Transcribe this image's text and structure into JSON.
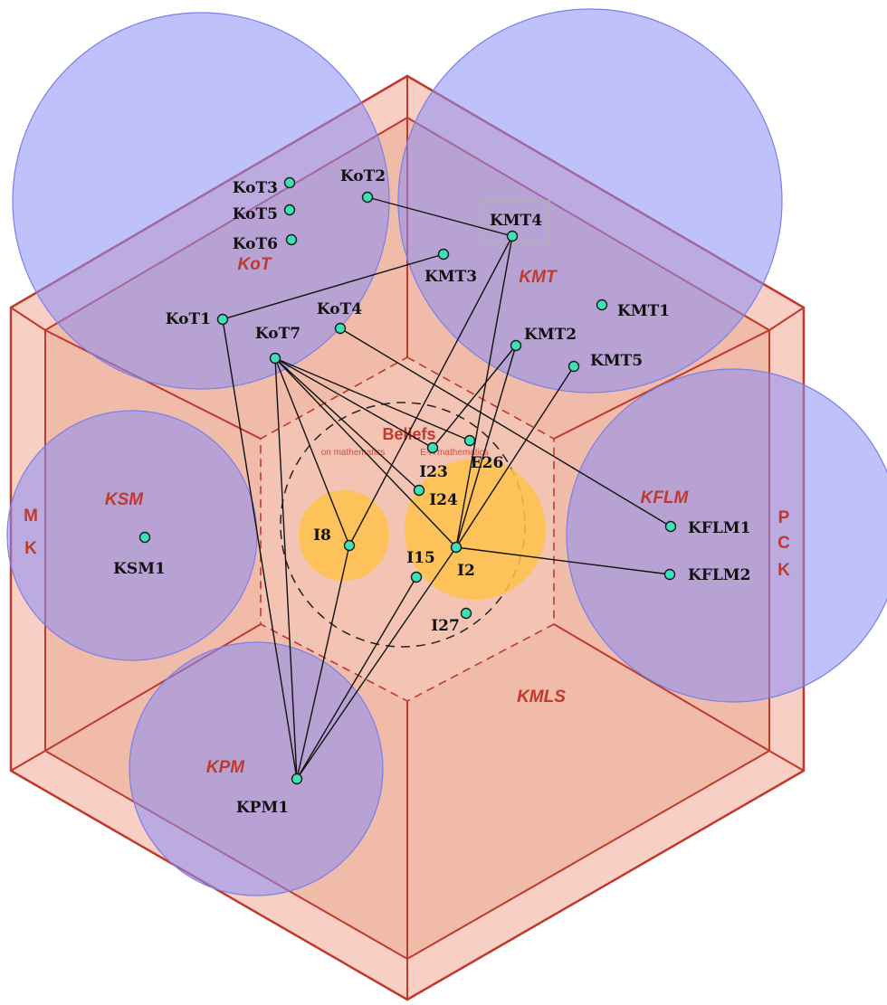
{
  "side_labels": {
    "mk": {
      "letters": [
        "M",
        "K"
      ],
      "color": "#c0392b"
    },
    "pck": {
      "letters": [
        "P",
        "C",
        "K"
      ],
      "color": "#c0392b"
    }
  },
  "regions": {
    "kot": "KoT",
    "kmt": "KMT",
    "ksm": "KSM",
    "kflm": "KFLM",
    "kpm": "KPM",
    "kmls": "KMLS"
  },
  "beliefs": {
    "title": "Beliefs",
    "left_caption": "on mathematics",
    "right_caption": "E-A mathematics"
  },
  "nodes": {
    "KoT1": "KoT1",
    "KoT2": "KoT2",
    "KoT3": "KoT3",
    "KoT4": "KoT4",
    "KoT5": "KoT5",
    "KoT6": "KoT6",
    "KoT7": "KoT7",
    "KMT1": "KMT1",
    "KMT2": "KMT2",
    "KMT3": "KMT3",
    "KMT4": "KMT4",
    "KMT5": "KMT5",
    "KSM1": "KSM1",
    "KFLM1": "KFLM1",
    "KFLM2": "KFLM2",
    "KPM1": "KPM1",
    "I8": "I8",
    "I2": "I2",
    "I15": "I15",
    "I23": "I23",
    "I24": "I24",
    "E26": "E26",
    "I27": "I27"
  },
  "connections": [
    [
      "KoT2",
      "KMT4"
    ],
    [
      "KoT1",
      "KMT3"
    ],
    [
      "KoT1",
      "KPM1"
    ],
    [
      "KoT4",
      "KFLM1"
    ],
    [
      "KoT7",
      "I8"
    ],
    [
      "KoT7",
      "I23"
    ],
    [
      "KoT7",
      "I24"
    ],
    [
      "KoT7",
      "E26"
    ],
    [
      "KoT7",
      "I2"
    ],
    [
      "KoT7",
      "KPM1"
    ],
    [
      "KMT4",
      "I8"
    ],
    [
      "KMT4",
      "I2"
    ],
    [
      "KMT2",
      "I23"
    ],
    [
      "KMT2",
      "I2"
    ],
    [
      "KMT5",
      "I2"
    ],
    [
      "I2",
      "KFLM2"
    ],
    [
      "I8",
      "KPM1"
    ],
    [
      "I15",
      "KPM1"
    ],
    [
      "I2",
      "KPM1"
    ]
  ],
  "colors": {
    "hexagon_fill": "#f7c9bd",
    "hexagon_stroke": "#c0392b",
    "inner_cube_fill": "#efb7a4",
    "circle_fill": "#8a8ef7",
    "belief_circle_fill": "#ffc24a",
    "node_fill": "#3ee0b8",
    "label_red": "#c0392b"
  }
}
